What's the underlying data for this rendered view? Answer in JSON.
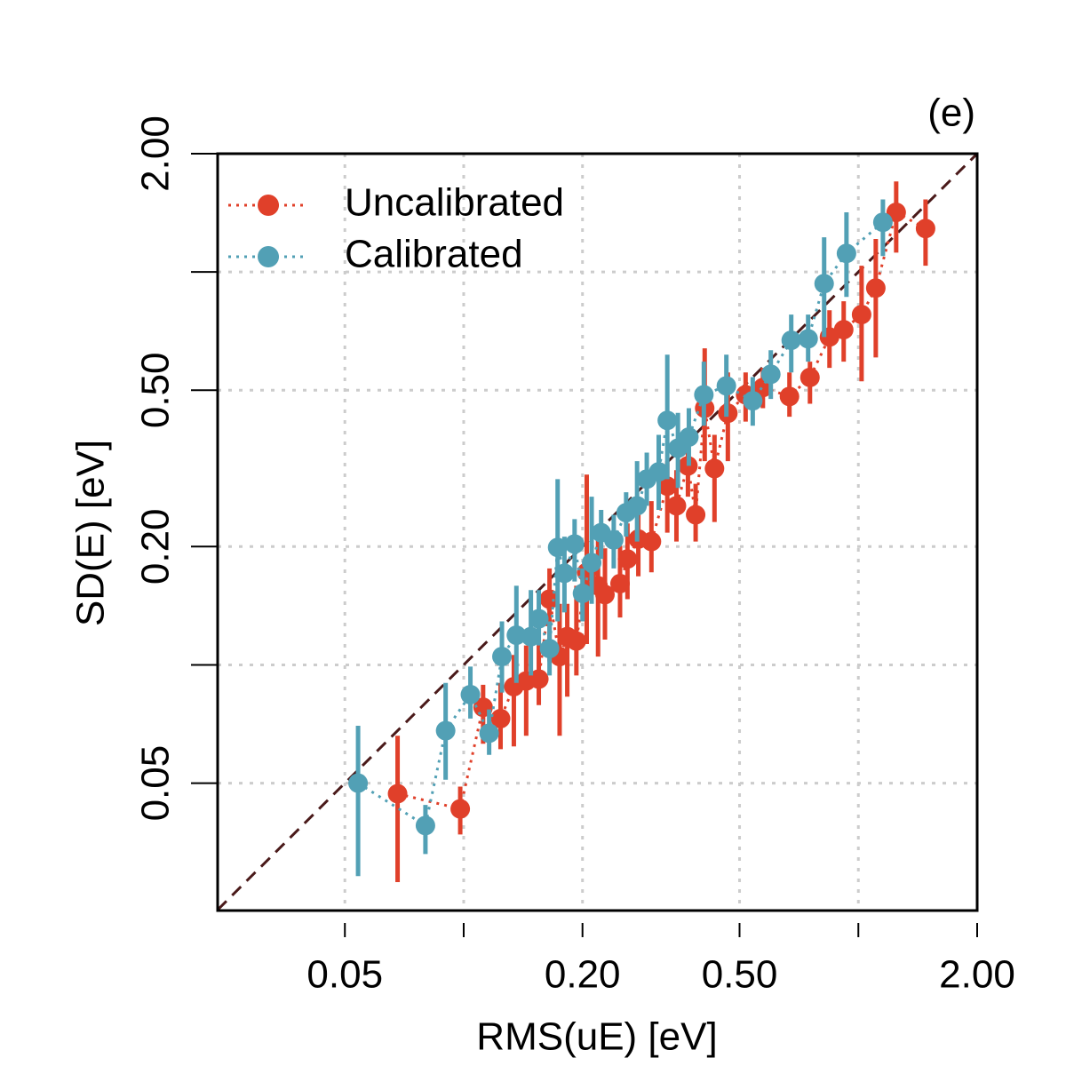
{
  "chart_data": {
    "type": "scatter",
    "annotation": "(e)",
    "xlabel": "RMS(uE) [eV]",
    "ylabel": "SD(E) [eV]",
    "xscale": "log",
    "yscale": "log",
    "xlim": [
      0.0238,
      2.0
    ],
    "ylim": [
      0.0237,
      2.0
    ],
    "xticks": [
      0.05,
      {
        "value": 0.1
      },
      {
        "value": 0.2,
        "label": "0.20"
      },
      {
        "value": 0.5,
        "label": "0.50"
      },
      {
        "value": 1.0
      },
      {
        "value": 2.0,
        "label": "2.00"
      }
    ],
    "yticks": [
      0.05,
      {
        "value": 0.1
      },
      {
        "value": 0.2,
        "label": "0.20"
      },
      {
        "value": 0.5,
        "label": "0.50"
      },
      {
        "value": 1.0
      },
      {
        "value": 2.0,
        "label": "2.00"
      }
    ],
    "grid": true,
    "legend": "top-left",
    "series": [
      {
        "name": "Uncalibrated",
        "color": "#e0402a",
        "x": [
          0.068,
          0.098,
          0.112,
          0.124,
          0.134,
          0.144,
          0.155,
          0.165,
          0.175,
          0.183,
          0.193,
          0.205,
          0.219,
          0.228,
          0.249,
          0.26,
          0.277,
          0.299,
          0.328,
          0.346,
          0.37,
          0.387,
          0.408,
          0.432,
          0.467,
          0.518,
          0.573,
          0.669,
          0.754,
          0.845,
          0.918,
          1.019,
          1.107,
          1.247,
          1.48
        ],
        "values": [
          0.047,
          0.043,
          0.078,
          0.073,
          0.088,
          0.091,
          0.092,
          0.147,
          0.105,
          0.118,
          0.115,
          0.172,
          0.159,
          0.151,
          0.161,
          0.186,
          0.209,
          0.206,
          0.285,
          0.254,
          0.321,
          0.241,
          0.45,
          0.316,
          0.437,
          0.487,
          0.508,
          0.482,
          0.539,
          0.683,
          0.713,
          0.779,
          0.91,
          1.418,
          1.29
        ],
        "lower": [
          0.028,
          0.037,
          0.063,
          0.061,
          0.062,
          0.066,
          0.079,
          0.102,
          0.066,
          0.083,
          0.094,
          0.113,
          0.105,
          0.116,
          0.132,
          0.147,
          0.168,
          0.172,
          0.217,
          0.206,
          0.268,
          0.206,
          0.33,
          0.231,
          0.33,
          0.416,
          0.45,
          0.428,
          0.462,
          0.57,
          0.591,
          0.527,
          0.606,
          1.12,
          1.037
        ],
        "upper": [
          0.066,
          0.049,
          0.089,
          0.09,
          0.106,
          0.112,
          0.124,
          0.176,
          0.143,
          0.143,
          0.159,
          0.305,
          0.212,
          0.198,
          0.201,
          0.229,
          0.261,
          0.261,
          0.33,
          0.313,
          0.385,
          0.289,
          0.639,
          0.385,
          0.555,
          0.555,
          0.57,
          0.555,
          0.591,
          0.799,
          0.842,
          1.037,
          1.213,
          1.7,
          1.53
        ]
      },
      {
        "name": "Calibrated",
        "color": "#52a0b5",
        "x": [
          0.054,
          0.08,
          0.09,
          0.104,
          0.116,
          0.125,
          0.136,
          0.148,
          0.155,
          0.165,
          0.173,
          0.18,
          0.191,
          0.2,
          0.211,
          0.223,
          0.24,
          0.258,
          0.275,
          0.291,
          0.312,
          0.328,
          0.349,
          0.372,
          0.406,
          0.463,
          0.54,
          0.6,
          0.676,
          0.746,
          0.819,
          0.933,
          1.154
        ],
        "values": [
          0.05,
          0.039,
          0.068,
          0.084,
          0.067,
          0.105,
          0.119,
          0.118,
          0.131,
          0.11,
          0.199,
          0.171,
          0.203,
          0.152,
          0.182,
          0.217,
          0.208,
          0.244,
          0.254,
          0.297,
          0.31,
          0.419,
          0.356,
          0.38,
          0.487,
          0.513,
          0.47,
          0.549,
          0.67,
          0.676,
          0.934,
          1.115,
          1.338
        ],
        "lower": [
          0.029,
          0.033,
          0.051,
          0.073,
          0.059,
          0.085,
          0.09,
          0.094,
          0.112,
          0.094,
          0.129,
          0.136,
          0.163,
          0.129,
          0.143,
          0.186,
          0.176,
          0.212,
          0.206,
          0.254,
          0.248,
          0.297,
          0.282,
          0.321,
          0.406,
          0.428,
          0.406,
          0.475,
          0.555,
          0.591,
          0.683,
          0.864,
          1.098
        ],
        "upper": [
          0.07,
          0.044,
          0.09,
          0.099,
          0.077,
          0.129,
          0.159,
          0.155,
          0.155,
          0.129,
          0.297,
          0.212,
          0.235,
          0.176,
          0.268,
          0.248,
          0.241,
          0.275,
          0.33,
          0.347,
          0.385,
          0.616,
          0.438,
          0.45,
          0.591,
          0.616,
          0.54,
          0.632,
          0.779,
          0.779,
          1.225,
          1.418,
          1.53
        ]
      }
    ]
  }
}
